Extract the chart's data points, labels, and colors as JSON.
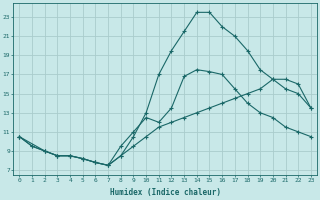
{
  "xlabel": "Humidex (Indice chaleur)",
  "background_color": "#c8e8e8",
  "grid_color": "#aacccc",
  "line_color": "#1a6868",
  "xlim": [
    -0.5,
    23.5
  ],
  "ylim": [
    6.5,
    24.5
  ],
  "xticks": [
    0,
    1,
    2,
    3,
    4,
    5,
    6,
    7,
    8,
    9,
    10,
    11,
    12,
    13,
    14,
    15,
    16,
    17,
    18,
    19,
    20,
    21,
    22,
    23
  ],
  "yticks": [
    7,
    9,
    11,
    13,
    15,
    17,
    19,
    21,
    23
  ],
  "line1_x": [
    0,
    1,
    2,
    3,
    4,
    5,
    6,
    7,
    8,
    9,
    10,
    11,
    12,
    13,
    14,
    15,
    16,
    17,
    18,
    19,
    20,
    21,
    22,
    23
  ],
  "line1_y": [
    10.5,
    9.5,
    9.0,
    8.5,
    8.5,
    8.2,
    7.8,
    7.5,
    9.5,
    11.0,
    12.5,
    12.0,
    13.5,
    16.8,
    17.5,
    17.3,
    17.0,
    15.5,
    14.0,
    13.0,
    12.5,
    11.5,
    11.0,
    10.5
  ],
  "line2_x": [
    0,
    1,
    2,
    3,
    4,
    5,
    6,
    7,
    8,
    9,
    10,
    11,
    12,
    13,
    14,
    15,
    16,
    17,
    18,
    19,
    20,
    21,
    22,
    23
  ],
  "line2_y": [
    10.5,
    9.5,
    9.0,
    8.5,
    8.5,
    8.2,
    7.8,
    7.5,
    8.5,
    10.5,
    13.0,
    17.0,
    19.5,
    21.5,
    23.5,
    23.5,
    22.0,
    21.0,
    19.5,
    17.5,
    16.5,
    15.5,
    15.0,
    13.5
  ],
  "line3_x": [
    0,
    2,
    3,
    4,
    5,
    6,
    7,
    8,
    9,
    10,
    11,
    12,
    13,
    14,
    15,
    16,
    17,
    18,
    19,
    20,
    21,
    22,
    23
  ],
  "line3_y": [
    10.5,
    9.0,
    8.5,
    8.5,
    8.2,
    7.8,
    7.5,
    8.5,
    9.5,
    10.5,
    11.5,
    12.0,
    12.5,
    13.0,
    13.5,
    14.0,
    14.5,
    15.0,
    15.5,
    16.5,
    16.5,
    16.0,
    13.5
  ]
}
